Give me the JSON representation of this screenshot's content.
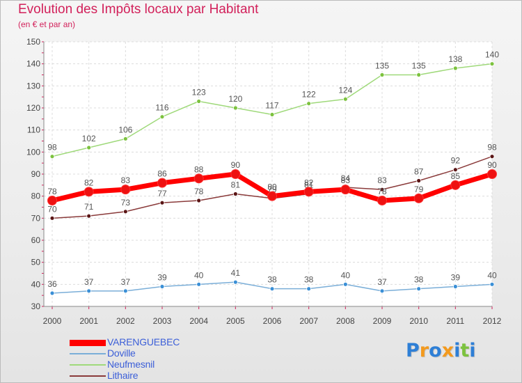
{
  "title": "Evolution des Impôts locaux par Habitant",
  "subtitle": "(en € et par an)",
  "logo_letters": [
    {
      "char": "P",
      "color": "#2e7fd6"
    },
    {
      "char": "r",
      "color": "#f39a1e"
    },
    {
      "char": "o",
      "color": "#2e7fd6"
    },
    {
      "char": "x",
      "color": "#f39a1e"
    },
    {
      "char": "i",
      "color": "#2e7fd6"
    },
    {
      "char": "t",
      "color": "#7cc23e"
    },
    {
      "char": "i",
      "color": "#2e7fd6"
    }
  ],
  "chart_data": {
    "type": "line",
    "title": "Evolution des Impôts locaux par Habitant",
    "subtitle": "(en € et par an)",
    "xlabel": "",
    "ylabel": "",
    "ylim": [
      30,
      150
    ],
    "yticks": [
      30,
      40,
      50,
      60,
      70,
      80,
      90,
      100,
      110,
      120,
      130,
      140,
      150
    ],
    "grid": true,
    "legend_position": "bottom-left",
    "categories": [
      "2000",
      "2001",
      "2002",
      "2003",
      "2004",
      "2005",
      "2006",
      "2007",
      "2008",
      "2009",
      "2010",
      "2011",
      "2012"
    ],
    "series": [
      {
        "name": "VARENGUEBEC",
        "color": "#ff0000",
        "marker": "#ee1111",
        "style": "thick",
        "values": [
          78,
          82,
          83,
          86,
          88,
          90,
          80,
          82,
          83,
          78,
          79,
          85,
          90
        ]
      },
      {
        "name": "Doville",
        "color": "#7aaed8",
        "marker": "#3a8fd6",
        "style": "thin",
        "values": [
          36,
          37,
          37,
          39,
          40,
          41,
          38,
          38,
          40,
          37,
          38,
          39,
          40
        ]
      },
      {
        "name": "Neufmesnil",
        "color": "#9fd97a",
        "marker": "#7cc23e",
        "style": "thin",
        "values": [
          98,
          102,
          106,
          116,
          123,
          120,
          117,
          122,
          124,
          135,
          135,
          138,
          140
        ]
      },
      {
        "name": "Lithaire",
        "color": "#8a3a3a",
        "marker": "#5a1515",
        "style": "thin",
        "values": [
          70,
          71,
          73,
          77,
          78,
          81,
          79,
          81,
          84,
          83,
          87,
          92,
          98
        ]
      }
    ]
  }
}
